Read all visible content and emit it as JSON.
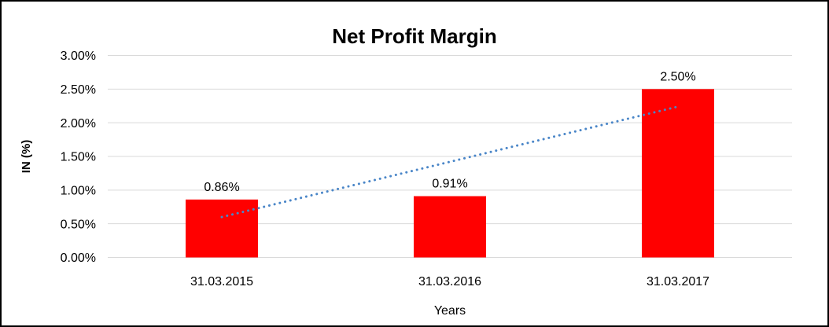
{
  "window": {
    "background": "#FFFFFF",
    "border_color": "#000000"
  },
  "chart_data": {
    "type": "bar",
    "title": "Net Profit Margin",
    "xlabel": "Years",
    "ylabel": "IN (%)",
    "categories": [
      "31.03.2015",
      "31.03.2016",
      "31.03.2017"
    ],
    "values": [
      0.86,
      0.91,
      2.5
    ],
    "data_labels": [
      "0.86%",
      "0.91%",
      "2.50%"
    ],
    "ylim": [
      0,
      3
    ],
    "y_ticks": [
      {
        "v": 0.0,
        "label": "0.00%"
      },
      {
        "v": 0.5,
        "label": "0.50%"
      },
      {
        "v": 1.0,
        "label": "1.00%"
      },
      {
        "v": 1.5,
        "label": "1.50%"
      },
      {
        "v": 2.0,
        "label": "2.00%"
      },
      {
        "v": 2.5,
        "label": "2.50%"
      },
      {
        "v": 3.0,
        "label": "3.00%"
      }
    ],
    "grid": true,
    "legend_position": "none",
    "colors": {
      "bar": "#FF0000",
      "trendline": "#4A86C8",
      "gridline": "#D9D9D9",
      "text": "#000000"
    },
    "trendline": {
      "type": "linear",
      "style": "dotted",
      "color": "#4A86C8",
      "start_value": 0.6,
      "end_value": 2.24
    }
  }
}
